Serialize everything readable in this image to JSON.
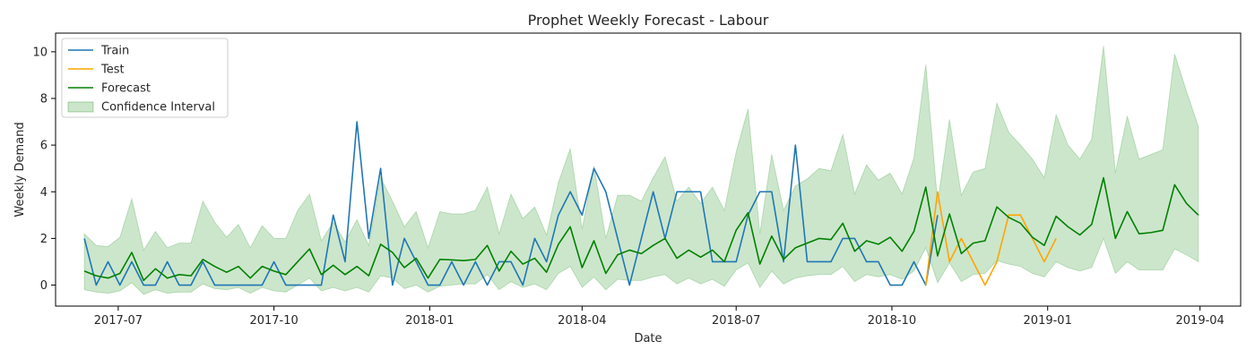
{
  "chart_data": {
    "type": "line",
    "title": "Prophet Weekly Forecast - Labour",
    "xlabel": "Date",
    "ylabel": "Weekly Demand",
    "xlim": [
      "2017-05-25",
      "2019-04-25"
    ],
    "ylim": [
      -0.9,
      10.8
    ],
    "x_ticks": [
      "2017-07-01",
      "2017-10-01",
      "2018-01-01",
      "2018-04-01",
      "2018-07-01",
      "2018-10-01",
      "2019-01-01",
      "2019-04-01"
    ],
    "x_tick_labels": [
      "2017-07",
      "2017-10",
      "2018-01",
      "2018-04",
      "2018-07",
      "2018-10",
      "2019-01",
      "2019-04"
    ],
    "y_ticks": [
      0,
      2,
      4,
      6,
      8,
      10
    ],
    "y_tick_labels": [
      "0",
      "2",
      "4",
      "6",
      "8",
      "10"
    ],
    "grid": false,
    "legend_position": "top-left",
    "legend": [
      "Train",
      "Test",
      "Forecast",
      "Confidence Interval"
    ],
    "colors": {
      "train": "#1f77b4",
      "test": "#ffa500",
      "forecast": "#008000",
      "confidence": "#008000"
    },
    "series": [
      {
        "name": "Train",
        "start": "2017-06-11",
        "step_days": 7,
        "values": [
          2,
          0,
          1,
          0,
          1,
          0,
          0,
          1,
          0,
          0,
          1,
          0,
          0,
          0,
          0,
          0,
          1,
          0,
          0,
          0,
          0,
          3,
          1,
          7,
          2,
          5,
          0,
          2,
          1,
          0,
          0,
          1,
          0,
          1,
          0,
          1,
          1,
          0,
          2,
          1,
          3,
          4,
          3,
          5,
          4,
          2,
          0,
          2,
          4,
          2,
          4,
          4,
          4,
          1,
          1,
          1,
          3,
          4,
          4,
          1,
          6,
          1,
          1,
          1,
          2,
          2,
          1,
          1,
          0,
          0,
          1,
          0,
          3
        ]
      },
      {
        "name": "Test",
        "start": "2018-10-21",
        "step_days": 7,
        "values": [
          0,
          4,
          1,
          2,
          1,
          0,
          1,
          3,
          3,
          2,
          1,
          2
        ]
      },
      {
        "name": "Forecast",
        "start": "2017-06-11",
        "step_days": 7,
        "values": [
          0.6,
          0.4,
          0.3,
          0.5,
          1.4,
          0.2,
          0.7,
          0.3,
          0.45,
          0.4,
          1.1,
          0.8,
          0.55,
          0.8,
          0.3,
          0.8,
          0.6,
          0.45,
          1.0,
          1.55,
          0.45,
          0.85,
          0.45,
          0.8,
          0.4,
          1.75,
          1.4,
          0.75,
          1.15,
          0.3,
          1.1,
          1.08,
          1.05,
          1.1,
          1.7,
          0.6,
          1.45,
          0.9,
          1.15,
          0.55,
          1.75,
          2.5,
          0.75,
          1.9,
          0.5,
          1.3,
          1.5,
          1.35,
          1.7,
          2.0,
          1.15,
          1.5,
          1.2,
          1.5,
          1.0,
          2.35,
          3.1,
          0.9,
          2.1,
          1.1,
          1.6,
          1.8,
          2.0,
          1.95,
          2.65,
          1.45,
          1.9,
          1.75,
          2.05,
          1.45,
          2.3,
          4.2,
          1.25,
          3.05,
          1.35,
          1.8,
          1.9,
          3.35,
          2.9,
          2.65,
          2.05,
          1.7,
          2.95,
          2.5,
          2.15,
          2.6,
          4.6,
          2.0,
          3.15,
          2.2,
          2.25,
          2.35,
          4.3,
          3.5,
          3.0
        ]
      }
    ],
    "confidence_interval": {
      "name": "Confidence Interval",
      "start": "2017-06-11",
      "step_days": 7,
      "lower": [
        -0.2,
        -0.3,
        -0.35,
        -0.25,
        0.1,
        -0.4,
        -0.2,
        -0.35,
        -0.3,
        -0.3,
        0.05,
        -0.15,
        -0.2,
        -0.1,
        -0.35,
        -0.1,
        -0.25,
        -0.3,
        0.0,
        0.3,
        -0.25,
        -0.1,
        -0.25,
        -0.1,
        -0.3,
        0.4,
        0.3,
        -0.15,
        0.0,
        -0.3,
        -0.05,
        0.0,
        0.05,
        0.05,
        0.45,
        -0.2,
        0.15,
        -0.1,
        0.05,
        -0.2,
        0.5,
        0.8,
        -0.1,
        0.35,
        -0.2,
        0.25,
        0.2,
        0.2,
        0.35,
        0.45,
        0.05,
        0.3,
        0.05,
        0.25,
        -0.05,
        0.65,
        0.95,
        -0.1,
        0.6,
        0.05,
        0.3,
        0.4,
        0.45,
        0.45,
        0.8,
        0.15,
        0.45,
        0.35,
        0.45,
        0.25,
        0.6,
        1.6,
        0.1,
        0.95,
        0.15,
        0.45,
        0.5,
        1.05,
        0.9,
        0.8,
        0.5,
        0.35,
        1.0,
        0.75,
        0.6,
        0.75,
        2.0,
        0.5,
        1.0,
        0.65,
        0.65,
        0.65,
        1.55,
        1.3,
        1.0
      ],
      "upper": [
        2.2,
        1.7,
        1.65,
        2.05,
        3.7,
        1.5,
        2.3,
        1.6,
        1.8,
        1.8,
        3.6,
        2.7,
        2.05,
        2.6,
        1.6,
        2.55,
        2.0,
        2.0,
        3.2,
        3.9,
        1.9,
        2.7,
        1.85,
        2.8,
        1.7,
        4.6,
        3.6,
        2.5,
        3.15,
        1.6,
        3.15,
        3.05,
        3.05,
        3.2,
        4.2,
        2.2,
        3.9,
        2.85,
        3.35,
        2.15,
        4.4,
        5.85,
        2.4,
        5.1,
        2.0,
        3.85,
        3.85,
        3.6,
        4.6,
        5.5,
        3.6,
        4.2,
        3.5,
        4.2,
        3.2,
        5.7,
        7.55,
        2.2,
        5.6,
        3.2,
        4.25,
        4.55,
        5.0,
        4.9,
        6.45,
        3.9,
        5.15,
        4.5,
        4.8,
        3.9,
        5.45,
        9.45,
        3.5,
        7.1,
        3.85,
        4.85,
        5.0,
        7.8,
        6.55,
        6.0,
        5.4,
        4.6,
        7.3,
        6.0,
        5.4,
        6.25,
        10.25,
        4.8,
        7.25,
        5.4,
        5.6,
        5.8,
        9.9,
        8.3,
        6.8
      ]
    }
  }
}
